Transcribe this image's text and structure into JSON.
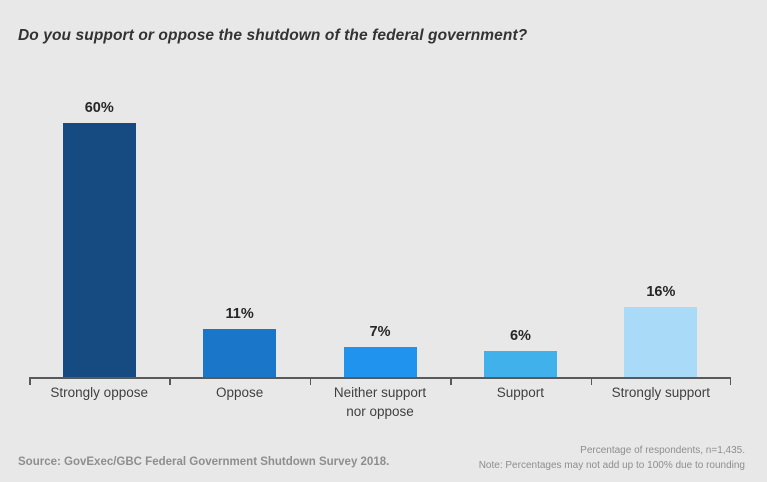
{
  "title": "Do you support or oppose the shutdown of the federal government?",
  "chart_data": {
    "type": "bar",
    "title": "Do you support or oppose the shutdown of the federal government?",
    "categories": [
      "Strongly oppose",
      "Oppose",
      "Neither support nor oppose",
      "Support",
      "Strongly support"
    ],
    "values": [
      60,
      11,
      7,
      6,
      16
    ],
    "value_labels": [
      "60%",
      "11%",
      "7%",
      "6%",
      "16%"
    ],
    "bar_colors": [
      "#164b82",
      "#1976c8",
      "#1f93ee",
      "#41b1eb",
      "#a9daf8"
    ],
    "xlabel": "",
    "ylabel": "",
    "ylim": [
      0,
      63
    ],
    "grid": false,
    "legend": false,
    "data_labels_position": "above-bars"
  },
  "footer": {
    "source": "Source: GovExec/GBC Federal Government Shutdown Survey 2018.",
    "note_line1": "Percentage of respondents, n=1,435.",
    "note_line2": "Note: Percentages may not add up to 100% due to rounding"
  },
  "colors": {
    "background": "#e8e8e8",
    "axis": "#58595b",
    "title_text": "#333333",
    "category_text": "#404040",
    "value_text": "#262626",
    "footer_text": "#8e8e8e"
  }
}
